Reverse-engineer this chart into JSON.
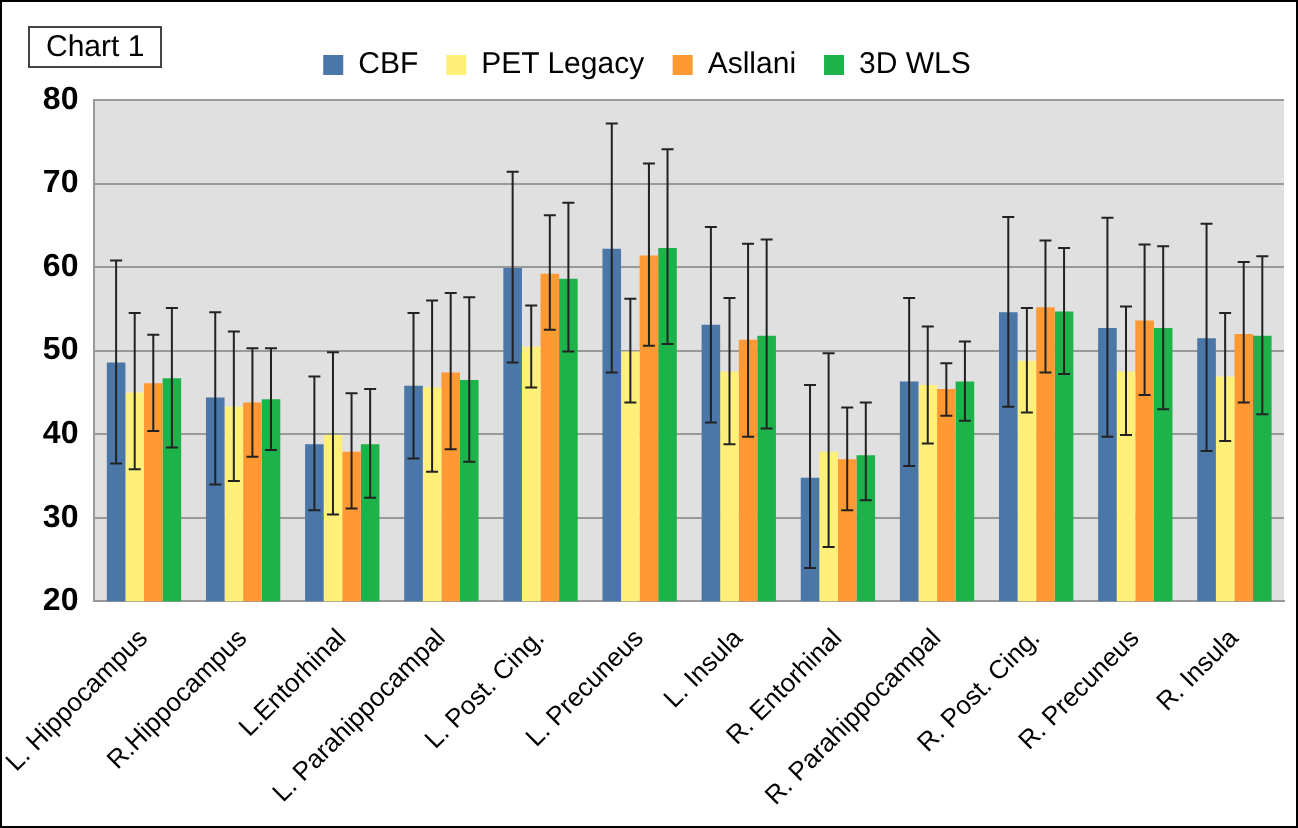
{
  "chart_data": {
    "type": "bar",
    "title": "Chart 1",
    "categories": [
      "L. Hippocampus",
      "R.Hippocampus",
      "L.Entorhinal",
      "L. Parahippocampal",
      "L. Post. Cing.",
      "L. Precuneus",
      "L. Insula",
      "R. Entorhinal",
      "R. Parahippocampal",
      "R. Post. Cing.",
      "R. Precuneus",
      "R. Insula"
    ],
    "series": [
      {
        "name": "CBF",
        "color": "#4a76a8",
        "values": [
          48.6,
          44.4,
          38.8,
          45.8,
          59.9,
          62.2,
          53.1,
          34.8,
          46.3,
          54.6,
          52.7,
          51.5
        ],
        "errors": [
          [
            36.5,
            60.8
          ],
          [
            34,
            54.6
          ],
          [
            30.9,
            46.9
          ],
          [
            37.1,
            54.5
          ],
          [
            48.6,
            71.4
          ],
          [
            47.4,
            77.2
          ],
          [
            41.4,
            64.8
          ],
          [
            24,
            45.9
          ],
          [
            36.2,
            56.3
          ],
          [
            43.3,
            66
          ],
          [
            39.7,
            65.9
          ],
          [
            38,
            65.2
          ]
        ]
      },
      {
        "name": "PET Legacy",
        "color": "#fff07a",
        "values": [
          45,
          43.3,
          39.9,
          45.6,
          50.5,
          49.9,
          47.5,
          37.9,
          45.9,
          48.8,
          47.5,
          46.9
        ],
        "errors": [
          [
            35.8,
            54.5
          ],
          [
            34.4,
            52.3
          ],
          [
            30.4,
            49.8
          ],
          [
            35.5,
            56
          ],
          [
            45.6,
            55.4
          ],
          [
            43.8,
            56.2
          ],
          [
            38.8,
            56.3
          ],
          [
            26.5,
            49.7
          ],
          [
            38.9,
            52.9
          ],
          [
            42.6,
            55.1
          ],
          [
            39.9,
            55.3
          ],
          [
            39.2,
            54.5
          ]
        ]
      },
      {
        "name": "Asllani",
        "color": "#ff9933",
        "values": [
          46.1,
          43.8,
          37.9,
          47.4,
          59.2,
          61.4,
          51.3,
          37,
          45.4,
          55.2,
          53.6,
          52
        ],
        "errors": [
          [
            40.4,
            51.9
          ],
          [
            37.3,
            50.3
          ],
          [
            31.1,
            44.9
          ],
          [
            38.2,
            56.9
          ],
          [
            52.5,
            66.2
          ],
          [
            50.6,
            72.4
          ],
          [
            39.7,
            62.8
          ],
          [
            30.9,
            43.2
          ],
          [
            42.2,
            48.5
          ],
          [
            47.4,
            63.2
          ],
          [
            44.7,
            62.7
          ],
          [
            43.8,
            60.6
          ]
        ]
      },
      {
        "name": "3D WLS",
        "color": "#1db34a",
        "values": [
          46.7,
          44.2,
          38.8,
          46.5,
          58.6,
          62.3,
          51.8,
          37.5,
          46.3,
          54.7,
          52.7,
          51.8
        ],
        "errors": [
          [
            38.4,
            55.1
          ],
          [
            38.1,
            50.3
          ],
          [
            32.4,
            45.4
          ],
          [
            36.7,
            56.4
          ],
          [
            49.9,
            67.7
          ],
          [
            50.8,
            74.1
          ],
          [
            40.7,
            63.3
          ],
          [
            32.1,
            43.8
          ],
          [
            41.6,
            51.1
          ],
          [
            47.2,
            62.3
          ],
          [
            43,
            62.5
          ],
          [
            42.4,
            61.3
          ]
        ]
      }
    ],
    "ylim": [
      20,
      80
    ],
    "yticks": [
      20,
      30,
      40,
      50,
      60,
      70,
      80
    ],
    "grid": "y",
    "legend": "top"
  }
}
